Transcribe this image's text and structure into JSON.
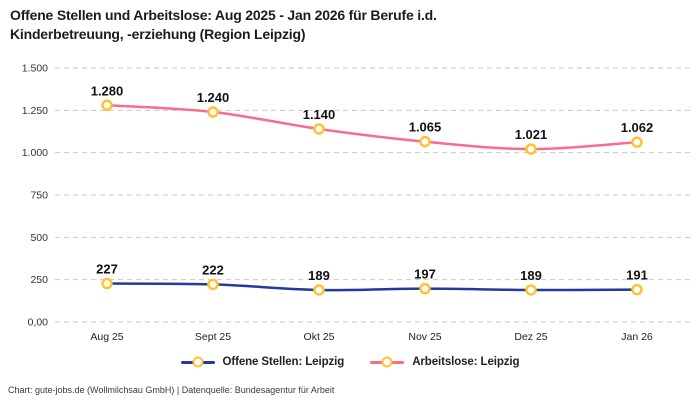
{
  "header": {
    "title_line1": "Offene Stellen und Arbeitslose: Aug 2025 - Jan 2026 für Berufe i.d.",
    "title_line2": "Kinderbetreuung, -erziehung (Region Leipzig)"
  },
  "colors": {
    "offene_stellen": "#223a9e",
    "arbeitslose": "#f76d8f",
    "marker_ring": "#ffc233",
    "marker_fill": "#ffffff",
    "grid": "#c9c9c9",
    "data_label": "#111111",
    "axis_label": "#333333"
  },
  "chart_data": {
    "type": "line",
    "title": "Offene Stellen und Arbeitslose: Aug 2025 - Jan 2026 für Berufe i.d. Kinderbetreuung, -erziehung (Region Leipzig)",
    "categories": [
      "Aug 25",
      "Sept 25",
      "Okt 25",
      "Nov 25",
      "Dez 25",
      "Jan 26"
    ],
    "series": [
      {
        "name": "Offene Stellen: Leipzig",
        "values": [
          227,
          222,
          189,
          197,
          189,
          191
        ],
        "labels": [
          "227",
          "222",
          "189",
          "197",
          "189",
          "191"
        ],
        "color_key": "offene_stellen"
      },
      {
        "name": "Arbeitslose: Leipzig",
        "values": [
          1280,
          1240,
          1140,
          1065,
          1021,
          1062
        ],
        "labels": [
          "1.280",
          "1.240",
          "1.140",
          "1.065",
          "1.021",
          "1.062"
        ],
        "color_key": "arbeitslose"
      }
    ],
    "y_axis": {
      "tick_values": [
        0,
        250,
        500,
        750,
        1000,
        1250,
        1500
      ],
      "tick_labels": [
        "0,00",
        "250",
        "500",
        "750",
        "1.000",
        "1.250",
        "1.500"
      ]
    },
    "ylim": [
      0,
      1500
    ],
    "grid": "horizontal-dashed",
    "legend_position": "bottom",
    "marker_style": "ring"
  },
  "footer": {
    "credit": "Chart: gute-jobs.de (Wollmilchsau GmbH) | Datenquelle: Bundesagentur für Arbeit"
  }
}
